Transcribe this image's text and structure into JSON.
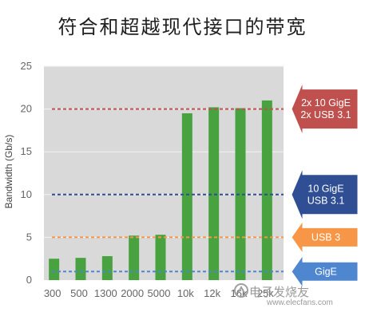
{
  "chart_data": {
    "type": "bar",
    "title": "符合和超越现代接口的带宽",
    "ylabel": "Bandwidth (Gb/s)",
    "xlabel": "",
    "ylim": [
      0,
      25
    ],
    "yticks": [
      0,
      5,
      10,
      15,
      20,
      25
    ],
    "grid": true,
    "categories": [
      "300",
      "500",
      "1300",
      "2000",
      "5000",
      "10k",
      "12k",
      "16k",
      "25k"
    ],
    "values": [
      2.5,
      2.6,
      2.8,
      5.2,
      5.3,
      19.5,
      20.2,
      20.1,
      21.0
    ],
    "bar_color": "#48a23f",
    "reference_lines": [
      {
        "value": 20,
        "color": "#c0504d",
        "label_lines": [
          "2x 10 GigE",
          "2x USB 3.1"
        ]
      },
      {
        "value": 10,
        "color": "#2f4e93",
        "label_lines": [
          "10 GigE",
          "USB 3.1"
        ]
      },
      {
        "value": 5,
        "color": "#f79646",
        "label_lines": [
          "USB 3"
        ]
      },
      {
        "value": 1,
        "color": "#4f86d0",
        "label_lines": [
          "GigE"
        ]
      }
    ]
  },
  "watermark": {
    "text": "电子发烧友",
    "url": "www.elecfans.com"
  }
}
